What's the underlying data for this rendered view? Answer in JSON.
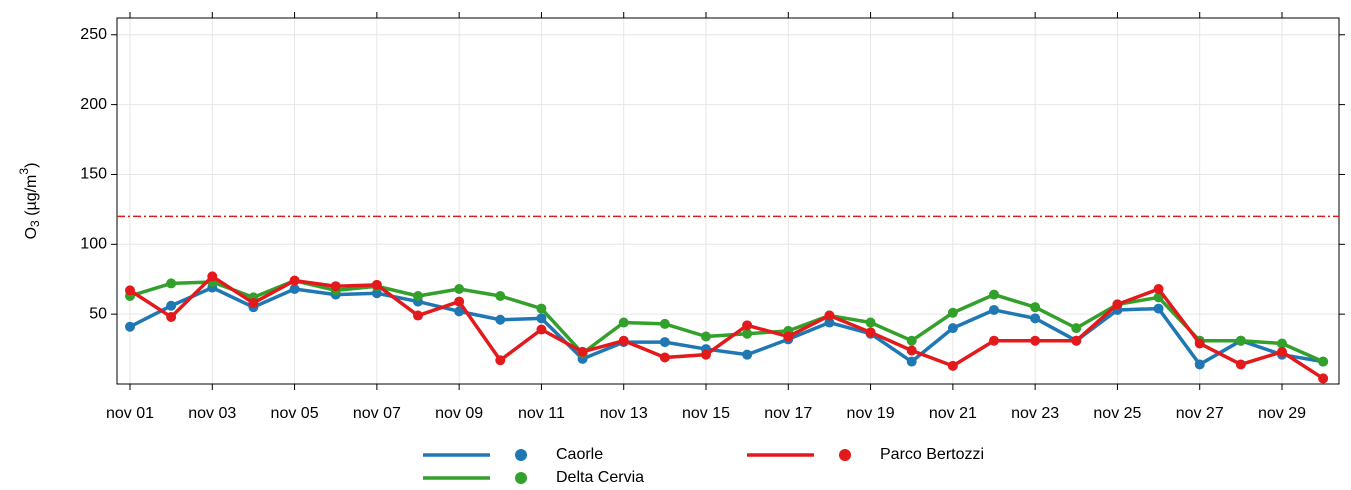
{
  "chart_data": {
    "type": "line",
    "ylabel": {
      "main": "O",
      "sub": "3",
      "rest": " (µg/m",
      "sup": "3",
      "end": ")"
    },
    "categories": [
      "nov 01",
      null,
      "nov 03",
      null,
      "nov 05",
      null,
      "nov 07",
      null,
      "nov 09",
      null,
      "nov 11",
      null,
      "nov 13",
      null,
      "nov 15",
      null,
      "nov 17",
      null,
      "nov 19",
      null,
      "nov 21",
      null,
      "nov 23",
      null,
      "nov 25",
      null,
      "nov 27",
      null,
      "nov 29",
      null
    ],
    "series": [
      {
        "name": "Caorle",
        "color": "#1f78b4",
        "values": [
          41,
          56,
          69,
          55,
          68,
          64,
          65,
          59,
          52,
          46,
          47,
          18,
          30,
          30,
          25,
          21,
          32,
          44,
          36,
          16,
          40,
          53,
          47,
          31,
          53,
          54,
          14,
          31,
          21,
          16
        ]
      },
      {
        "name": "Delta Cervia",
        "color": "#33a02c",
        "values": [
          63,
          72,
          73,
          62,
          74,
          67,
          70,
          63,
          68,
          63,
          54,
          22,
          44,
          43,
          34,
          36,
          38,
          49,
          44,
          31,
          51,
          64,
          55,
          40,
          57,
          62,
          31,
          31,
          29,
          16
        ]
      },
      {
        "name": "Parco Bertozzi",
        "color": "#e31a1c",
        "values": [
          67,
          48,
          77,
          58,
          74,
          70,
          71,
          49,
          59,
          17,
          39,
          23,
          31,
          19,
          21,
          42,
          34,
          49,
          37,
          24,
          13,
          31,
          31,
          31,
          57,
          68,
          29,
          14,
          23,
          4
        ]
      }
    ],
    "reference_line": {
      "value": 120,
      "color": "#e31a1c"
    },
    "ylim": [
      0,
      262
    ],
    "yticks": [
      50,
      100,
      150,
      200,
      250
    ],
    "grid": true
  }
}
